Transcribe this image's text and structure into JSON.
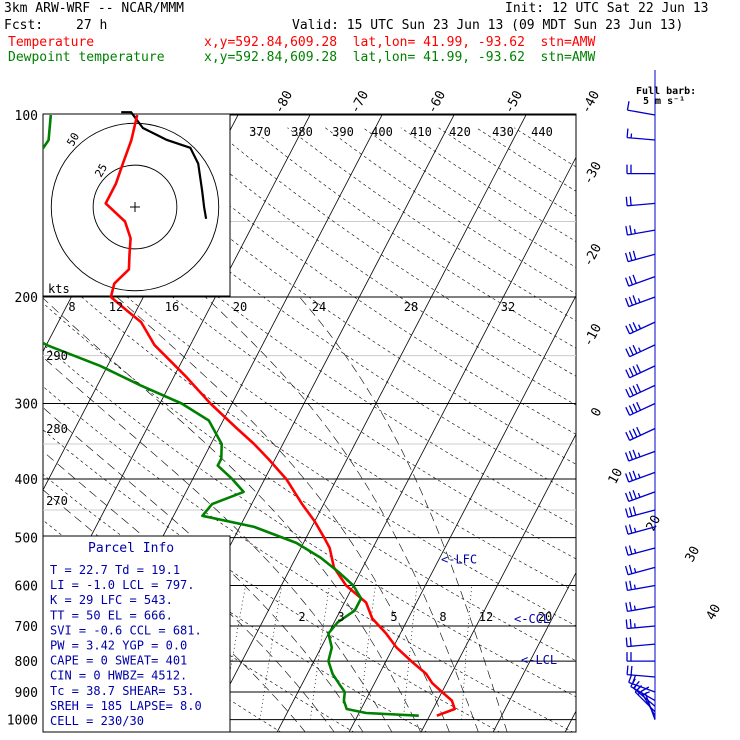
{
  "header": {
    "model": "3km ARW-WRF -- NCAR/MMM",
    "init": "Init: 12 UTC Sat 22 Jun 13",
    "fcst_label": "Fcst:",
    "fcst_value": "27 h",
    "valid": "Valid: 15 UTC Sun 23 Jun 13 (09 MDT Sun 23 Jun 13)",
    "temp_label": "Temperature",
    "dew_label": "Dewpoint temperature",
    "location": "x,y=592.84,609.28  lat,lon= 41.99, -93.62  stn=AMW"
  },
  "barb_key": {
    "title": "Full barb:",
    "value": "5 m s⁻¹"
  },
  "colors": {
    "temperature": "#ff0000",
    "dewpoint": "#008000",
    "parcel": "#000000",
    "barbs": "#0000cc",
    "hodograph": "#000000",
    "info_text": "#0000aa"
  },
  "parcel_info": {
    "title": "Parcel Info",
    "rows": [
      "T  =    22.7  Td =  19.1",
      "LI =    -1.0  LCL =  797.",
      "K  =      29  LFC =  543.",
      "TT =      50  EL  =  666.",
      "SVI =   -0.6  CCL =  681.",
      "PW  =   3.42  YGP =   0.0",
      "CAPE =     0  SWEAT=  401",
      "CIN  =     0  HWBZ= 4512.",
      "Tc  =   38.7  SHEAR=  53.",
      "SREH =   185  LAPSE=  8.0",
      "CELL = 230/30"
    ]
  },
  "chart_data": {
    "type": "line",
    "subtype": "skew-T log-p sounding",
    "yaxis_label": "",
    "ylim": [
      1000,
      100
    ],
    "yscale": "log",
    "pressure_ticks": [
      100,
      200,
      300,
      400,
      500,
      600,
      700,
      800,
      900,
      1000
    ],
    "top_temperature_labels": [
      "-80",
      "-70",
      "-60",
      "-50",
      "-40"
    ],
    "right_temperature_labels": [
      "-30",
      "-20",
      "-10",
      "0",
      "10",
      "20",
      "30",
      "40"
    ],
    "theta_labels": [
      "370",
      "380",
      "390",
      "400",
      "410",
      "420",
      "430",
      "440"
    ],
    "theta_inset_labels": [
      "290",
      "280",
      "270"
    ],
    "mixing_ratio_labels": [
      "2",
      "3",
      "5",
      "8",
      "12",
      "20"
    ],
    "level_markers": [
      {
        "label": "<-LFC",
        "p": 543
      },
      {
        "label": "<-CCL",
        "p": 681
      },
      {
        "label": "<-LCL",
        "p": 797
      }
    ],
    "series": [
      {
        "name": "Temperature",
        "color": "#ff0000",
        "p": [
          985,
          960,
          930,
          900,
          870,
          840,
          800,
          760,
          720,
          680,
          640,
          600,
          560,
          520,
          500,
          470,
          440,
          400,
          370,
          350,
          330,
          300,
          270,
          240,
          220,
          210,
          200,
          190,
          180,
          170,
          160,
          150,
          140,
          130,
          120,
          110,
          100
        ],
        "t": [
          21,
          23,
          22,
          20,
          18,
          16.5,
          13.5,
          10.5,
          8,
          5,
          3,
          -1,
          -4,
          -6,
          -7.5,
          -10,
          -13,
          -17,
          -21,
          -24,
          -27.5,
          -33,
          -38.5,
          -45,
          -48.5,
          -51.5,
          -54.5,
          -55,
          -54,
          -55,
          -56,
          -58,
          -62,
          -62,
          -62.5,
          -63,
          -64
        ]
      },
      {
        "name": "Dewpoint temperature",
        "color": "#008000",
        "p": [
          985,
          975,
          960,
          930,
          900,
          870,
          840,
          800,
          760,
          720,
          690,
          660,
          630,
          600,
          570,
          540,
          510,
          480,
          460,
          440,
          420,
          400,
          380,
          370,
          350,
          320,
          300,
          280,
          260,
          240,
          220,
          200,
          180,
          160,
          150,
          140,
          130,
          120,
          110,
          100
        ],
        "t": [
          18.5,
          11,
          8,
          7,
          6.5,
          5,
          3.5,
          2,
          1.5,
          0,
          0.5,
          2,
          2,
          0,
          -3,
          -6.5,
          -11,
          -18,
          -26,
          -25.5,
          -22,
          -24.5,
          -27.5,
          -27.5,
          -28.5,
          -32,
          -37,
          -44,
          -51,
          -60,
          -67,
          -71,
          -73,
          -75,
          -72,
          -74.5,
          -75,
          -75,
          -74.5,
          -76
        ]
      }
    ],
    "hodograph": {
      "speed_rings_kts": [
        8,
        12,
        16,
        20,
        24,
        28,
        32
      ],
      "inset_ring_labels": [
        "25",
        "50"
      ],
      "u": [
        18,
        17.5,
        17,
        16,
        14,
        11,
        8,
        6,
        2,
        -1,
        -3.5
      ],
      "v": [
        -3,
        0,
        4,
        11,
        15,
        16,
        17,
        18,
        20,
        24,
        24
      ]
    },
    "wind_barbs": [
      {
        "p": 1000,
        "dir": 340,
        "spd": 5
      },
      {
        "p": 985,
        "dir": 330,
        "spd": 15
      },
      {
        "p": 970,
        "dir": 315,
        "spd": 15
      },
      {
        "p": 950,
        "dir": 310,
        "spd": 15
      },
      {
        "p": 930,
        "dir": 300,
        "spd": 15
      },
      {
        "p": 900,
        "dir": 290,
        "spd": 20
      },
      {
        "p": 850,
        "dir": 275,
        "spd": 20
      },
      {
        "p": 800,
        "dir": 270,
        "spd": 20
      },
      {
        "p": 750,
        "dir": 265,
        "spd": 20
      },
      {
        "p": 700,
        "dir": 265,
        "spd": 25
      },
      {
        "p": 650,
        "dir": 260,
        "spd": 25
      },
      {
        "p": 600,
        "dir": 260,
        "spd": 25
      },
      {
        "p": 560,
        "dir": 255,
        "spd": 25
      },
      {
        "p": 520,
        "dir": 255,
        "spd": 25
      },
      {
        "p": 480,
        "dir": 255,
        "spd": 25
      },
      {
        "p": 450,
        "dir": 255,
        "spd": 30
      },
      {
        "p": 420,
        "dir": 250,
        "spd": 35
      },
      {
        "p": 390,
        "dir": 250,
        "spd": 35
      },
      {
        "p": 360,
        "dir": 250,
        "spd": 35
      },
      {
        "p": 330,
        "dir": 245,
        "spd": 40
      },
      {
        "p": 300,
        "dir": 245,
        "spd": 40
      },
      {
        "p": 280,
        "dir": 245,
        "spd": 40
      },
      {
        "p": 260,
        "dir": 245,
        "spd": 40
      },
      {
        "p": 240,
        "dir": 245,
        "spd": 35
      },
      {
        "p": 220,
        "dir": 245,
        "spd": 35
      },
      {
        "p": 200,
        "dir": 250,
        "spd": 35
      },
      {
        "p": 185,
        "dir": 250,
        "spd": 30
      },
      {
        "p": 170,
        "dir": 255,
        "spd": 30
      },
      {
        "p": 155,
        "dir": 260,
        "spd": 25
      },
      {
        "p": 140,
        "dir": 265,
        "spd": 20
      },
      {
        "p": 125,
        "dir": 270,
        "spd": 20
      },
      {
        "p": 110,
        "dir": 275,
        "spd": 15
      },
      {
        "p": 100,
        "dir": 280,
        "spd": 10
      }
    ]
  }
}
